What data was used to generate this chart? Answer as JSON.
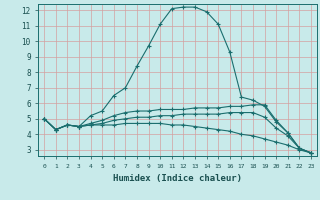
{
  "xlabel": "Humidex (Indice chaleur)",
  "background_color": "#c8eaea",
  "grid_color": "#d4a0a0",
  "line_color": "#1a6e6e",
  "xlim": [
    -0.5,
    23.5
  ],
  "ylim": [
    2.6,
    12.4
  ],
  "xticks": [
    0,
    1,
    2,
    3,
    4,
    5,
    6,
    7,
    8,
    9,
    10,
    11,
    12,
    13,
    14,
    15,
    16,
    17,
    18,
    19,
    20,
    21,
    22,
    23
  ],
  "yticks": [
    3,
    4,
    5,
    6,
    7,
    8,
    9,
    10,
    11,
    12
  ],
  "curves": [
    {
      "x": [
        0,
        1,
        2,
        3,
        4,
        5,
        6,
        7,
        8,
        9,
        10,
        11,
        12,
        13,
        14,
        15,
        16,
        17,
        18,
        19,
        20,
        21,
        22,
        23
      ],
      "y": [
        5.0,
        4.3,
        4.6,
        4.5,
        5.2,
        5.5,
        6.5,
        7.0,
        8.4,
        9.7,
        11.1,
        12.1,
        12.2,
        12.2,
        11.9,
        11.1,
        9.3,
        6.4,
        6.2,
        5.8,
        4.8,
        4.1,
        3.1,
        2.8
      ]
    },
    {
      "x": [
        0,
        1,
        2,
        3,
        4,
        5,
        6,
        7,
        8,
        9,
        10,
        11,
        12,
        13,
        14,
        15,
        16,
        17,
        18,
        19,
        20,
        21,
        22,
        23
      ],
      "y": [
        5.0,
        4.3,
        4.6,
        4.5,
        4.7,
        4.9,
        5.2,
        5.4,
        5.5,
        5.5,
        5.6,
        5.6,
        5.6,
        5.7,
        5.7,
        5.7,
        5.8,
        5.8,
        5.9,
        5.9,
        4.9,
        4.1,
        3.1,
        2.8
      ]
    },
    {
      "x": [
        0,
        1,
        2,
        3,
        4,
        5,
        6,
        7,
        8,
        9,
        10,
        11,
        12,
        13,
        14,
        15,
        16,
        17,
        18,
        19,
        20,
        21,
        22,
        23
      ],
      "y": [
        5.0,
        4.3,
        4.6,
        4.5,
        4.6,
        4.7,
        4.9,
        5.0,
        5.1,
        5.1,
        5.2,
        5.2,
        5.3,
        5.3,
        5.3,
        5.3,
        5.4,
        5.4,
        5.4,
        5.1,
        4.4,
        3.9,
        3.1,
        2.8
      ]
    },
    {
      "x": [
        0,
        1,
        2,
        3,
        4,
        5,
        6,
        7,
        8,
        9,
        10,
        11,
        12,
        13,
        14,
        15,
        16,
        17,
        18,
        19,
        20,
        21,
        22,
        23
      ],
      "y": [
        5.0,
        4.3,
        4.6,
        4.5,
        4.6,
        4.6,
        4.6,
        4.7,
        4.7,
        4.7,
        4.7,
        4.6,
        4.6,
        4.5,
        4.4,
        4.3,
        4.2,
        4.0,
        3.9,
        3.7,
        3.5,
        3.3,
        3.0,
        2.8
      ]
    }
  ]
}
